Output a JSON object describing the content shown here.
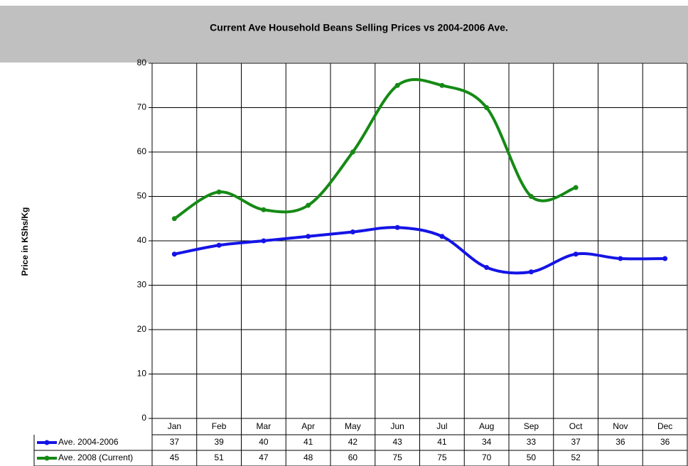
{
  "chart_data": {
    "type": "line",
    "title": "Current Ave Household Beans Selling Prices vs 2004-2006 Ave.",
    "y_label": "Price in KShs/Kg",
    "categories": [
      "Jan",
      "Feb",
      "Mar",
      "Apr",
      "May",
      "Jun",
      "Jul",
      "Aug",
      "Sep",
      "Oct",
      "Nov",
      "Dec"
    ],
    "series": [
      {
        "name": "Ave. 2004-2006",
        "color": "#1414e6",
        "values": [
          37,
          39,
          40,
          41,
          42,
          43,
          41,
          34,
          33,
          37,
          36,
          36
        ]
      },
      {
        "name": "Ave. 2008 (Current)",
        "color": "#158a15",
        "values": [
          45,
          51,
          47,
          48,
          60,
          75,
          75,
          70,
          50,
          52,
          null,
          null
        ]
      }
    ],
    "ylim": [
      0,
      80
    ],
    "yticks": [
      0,
      10,
      20,
      30,
      40,
      50,
      60,
      70,
      80
    ],
    "grid": true,
    "smooth": true,
    "data_table": true
  }
}
